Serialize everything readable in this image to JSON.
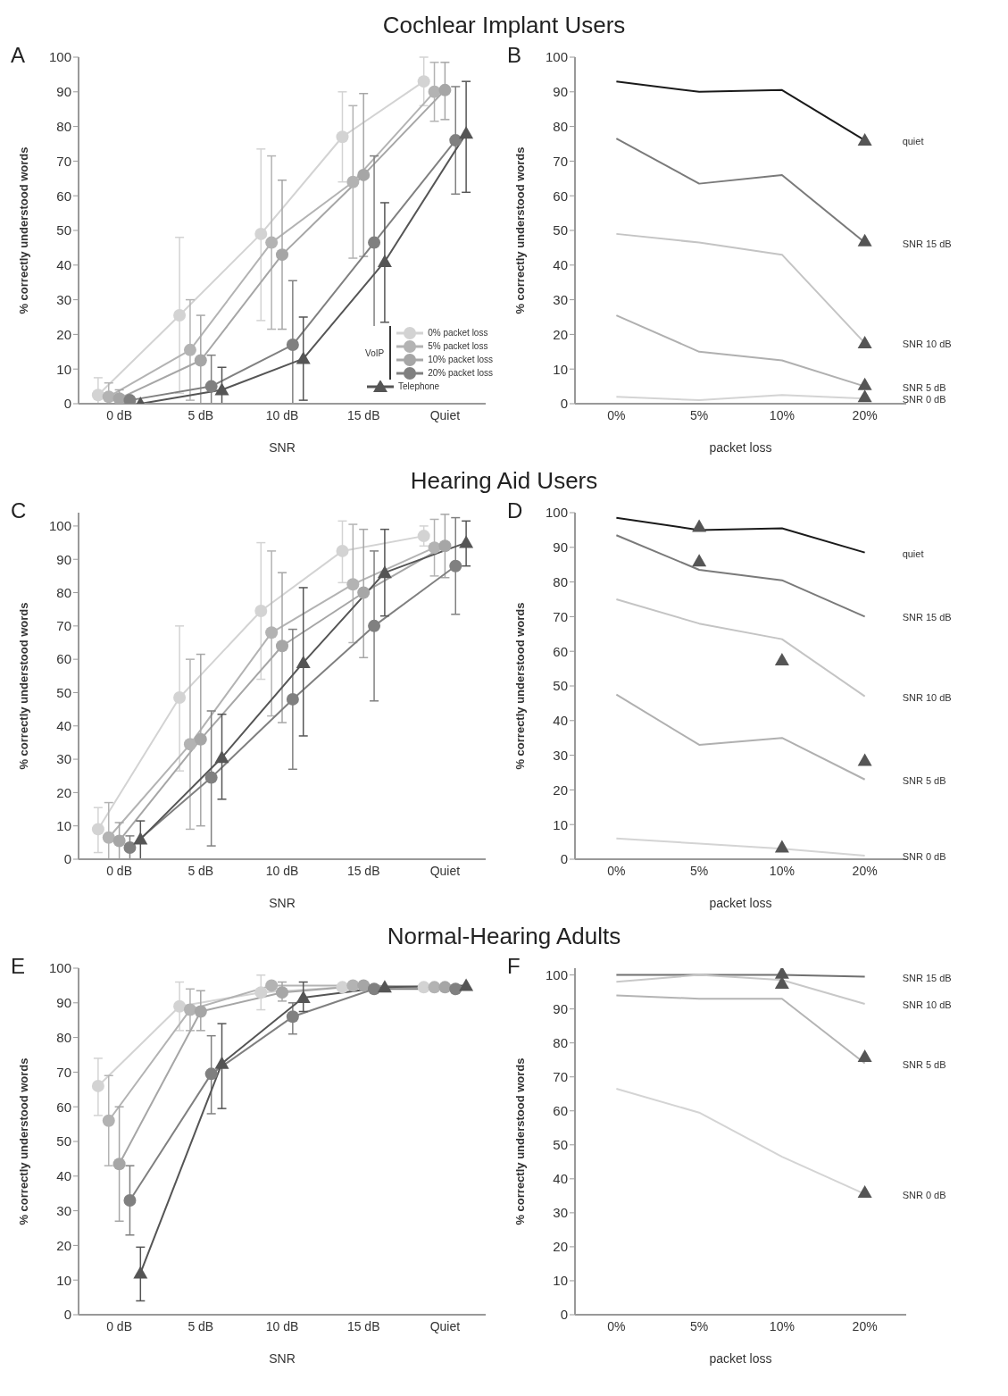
{
  "chart_data": [
    {
      "type": "line",
      "title": "Cochlear Implant Users",
      "annotations": [
        "A"
      ],
      "categories": [
        "0 dB",
        "5 dB",
        "10 dB",
        "15 dB",
        "Quiet"
      ],
      "xlabel": "SNR",
      "ylabel": "% correctly understood words",
      "ylim": [
        0,
        100
      ],
      "yticks": [
        0,
        10,
        20,
        30,
        40,
        50,
        60,
        70,
        80,
        90,
        100
      ],
      "legend": "bottom right",
      "legend_title": "VoIP",
      "series": [
        {
          "name": "0% packet loss",
          "color": "#d3d3d3",
          "marker": "circle",
          "values": [
            2.5,
            25.5,
            49,
            77,
            93
          ],
          "errors": [
            [
              0,
              7.5
            ],
            [
              3,
              48
            ],
            [
              24,
              73.5
            ],
            [
              64,
              90
            ],
            [
              86,
              100
            ]
          ]
        },
        {
          "name": "5% packet loss",
          "color": "#b3b3b3",
          "marker": "circle",
          "values": [
            2,
            15.5,
            46.5,
            64,
            90
          ],
          "errors": [
            [
              0,
              6
            ],
            [
              1,
              30
            ],
            [
              21.5,
              71.5
            ],
            [
              42,
              86
            ],
            [
              81.5,
              98.5
            ]
          ]
        },
        {
          "name": "10% packet loss",
          "color": "#a6a6a6",
          "marker": "circle",
          "values": [
            1.5,
            12.5,
            43,
            66,
            90.5
          ],
          "errors": [
            [
              0,
              4
            ],
            [
              0,
              25.5
            ],
            [
              21.5,
              64.5
            ],
            [
              42.5,
              89.5
            ],
            [
              82,
              98.5
            ]
          ]
        },
        {
          "name": "20% packet loss",
          "color": "#808080",
          "marker": "circle",
          "values": [
            1,
            5,
            17,
            46.5,
            76
          ],
          "errors": [
            null,
            [
              0,
              14
            ],
            [
              0,
              35.5
            ],
            25,
            [
              60.5,
              91.5
            ]
          ]
        },
        {
          "name": "Telephone",
          "color": "#555555",
          "marker": "triangle",
          "values": [
            0,
            4,
            13,
            41,
            78
          ],
          "errors": [
            null,
            [
              0,
              10.5
            ],
            [
              1,
              25
            ],
            [
              23.5,
              58
            ],
            [
              61,
              93
            ]
          ]
        }
      ]
    },
    {
      "type": "line",
      "annotations": [
        "B"
      ],
      "categories": [
        "0%",
        "5%",
        "10%",
        "20%"
      ],
      "xlabel": "packet loss",
      "ylabel": "% correctly understood words",
      "ylim": [
        0,
        100
      ],
      "yticks": [
        0,
        10,
        20,
        30,
        40,
        50,
        60,
        70,
        80,
        90,
        100
      ],
      "series": [
        {
          "name": "quiet",
          "color": "#1a1a1a",
          "values": [
            93,
            90,
            90.5,
            76
          ]
        },
        {
          "name": "SNR 15 dB",
          "color": "#7a7a7a",
          "values": [
            76.5,
            63.5,
            66,
            46.5
          ]
        },
        {
          "name": "SNR 10 dB",
          "color": "#c4c4c4",
          "values": [
            49,
            46.5,
            43,
            17.5
          ]
        },
        {
          "name": "SNR 5 dB",
          "color": "#b0b0b0",
          "values": [
            25.5,
            15,
            12.5,
            5
          ]
        },
        {
          "name": "SNR 0 dB",
          "color": "#d4d4d4",
          "values": [
            2,
            1,
            2.5,
            1.5
          ]
        },
        {
          "type": "scatter",
          "color": "#555555",
          "marker": "triangle",
          "x": [
            "20%",
            "20%",
            "20%",
            "20%",
            "20%"
          ],
          "values": [
            76,
            47,
            17.5,
            5.5,
            2
          ]
        }
      ]
    },
    {
      "type": "line",
      "title": "Hearing Aid Users",
      "annotations": [
        "C"
      ],
      "categories": [
        "0 dB",
        "5 dB",
        "10 dB",
        "15 dB",
        "Quiet"
      ],
      "xlabel": "SNR",
      "ylabel": "% correctly understood words",
      "ylim": [
        0,
        104
      ],
      "yticks": [
        0,
        10,
        20,
        30,
        40,
        50,
        60,
        70,
        80,
        90,
        100
      ],
      "series": [
        {
          "color": "#d3d3d3",
          "marker": "circle",
          "values": [
            9,
            48.5,
            74.5,
            92.5,
            97
          ],
          "errors": [
            [
              2,
              15.5
            ],
            [
              26.5,
              70
            ],
            [
              54,
              95
            ],
            [
              83,
              101.5
            ],
            [
              94,
              100
            ]
          ]
        },
        {
          "color": "#b3b3b3",
          "marker": "circle",
          "values": [
            6.5,
            34.5,
            68,
            82.5,
            93.5
          ],
          "errors": [
            [
              0,
              17
            ],
            [
              9,
              60
            ],
            [
              43,
              92.5
            ],
            [
              65,
              100.5
            ],
            [
              85,
              102
            ]
          ]
        },
        {
          "color": "#a6a6a6",
          "marker": "circle",
          "values": [
            5.5,
            36,
            64,
            80,
            94
          ],
          "errors": [
            [
              0,
              11
            ],
            [
              10,
              61.5
            ],
            [
              41,
              86
            ],
            [
              60.5,
              99
            ],
            [
              84.5,
              103.5
            ]
          ]
        },
        {
          "color": "#808080",
          "marker": "circle",
          "values": [
            3.5,
            24.5,
            48,
            70,
            88
          ],
          "errors": [
            [
              0,
              7
            ],
            [
              4,
              44.5
            ],
            [
              27,
              69
            ],
            [
              47.5,
              92.5
            ],
            [
              73.5,
              102.5
            ]
          ]
        },
        {
          "color": "#555555",
          "marker": "triangle",
          "values": [
            6,
            30.5,
            59,
            86,
            95
          ],
          "errors": [
            [
              0,
              11.5
            ],
            [
              18,
              43.5
            ],
            [
              37,
              81.5
            ],
            [
              73,
              99
            ],
            [
              88,
              101.5
            ]
          ]
        }
      ]
    },
    {
      "type": "line",
      "annotations": [
        "D"
      ],
      "categories": [
        "0%",
        "5%",
        "10%",
        "20%"
      ],
      "xlabel": "packet loss",
      "ylabel": "% correctly understood words",
      "ylim": [
        0,
        100
      ],
      "yticks": [
        0,
        10,
        20,
        30,
        40,
        50,
        60,
        70,
        80,
        90,
        100
      ],
      "series": [
        {
          "name": "quiet",
          "color": "#1a1a1a",
          "values": [
            98.5,
            95,
            95.5,
            88.5
          ]
        },
        {
          "name": "SNR 15 dB",
          "color": "#7a7a7a",
          "values": [
            93.5,
            83.5,
            80.5,
            70
          ]
        },
        {
          "name": "SNR 10 dB",
          "color": "#c4c4c4",
          "values": [
            75,
            68,
            63.5,
            47
          ]
        },
        {
          "name": "SNR 5 dB",
          "color": "#b0b0b0",
          "values": [
            47.5,
            33,
            35,
            23
          ]
        },
        {
          "name": "SNR 0 dB",
          "color": "#d4d4d4",
          "values": [
            6,
            4.5,
            3,
            1
          ]
        },
        {
          "type": "scatter",
          "color": "#555555",
          "marker": "triangle",
          "x": [
            "5%",
            "5%",
            "10%",
            "20%",
            "10%"
          ],
          "values": [
            96,
            86,
            57.5,
            28.5,
            3.5
          ]
        }
      ]
    },
    {
      "type": "line",
      "title": "Normal-Hearing Adults",
      "annotations": [
        "E"
      ],
      "categories": [
        "0 dB",
        "5 dB",
        "10 dB",
        "15 dB",
        "Quiet"
      ],
      "xlabel": "SNR",
      "ylabel": "% correctly understood words",
      "ylim": [
        0,
        100
      ],
      "yticks": [
        0,
        10,
        20,
        30,
        40,
        50,
        60,
        70,
        80,
        90,
        100
      ],
      "series": [
        {
          "color": "#d3d3d3",
          "marker": "circle",
          "values": [
            66,
            89,
            93,
            94.5,
            94.5
          ],
          "errors": [
            [
              57.5,
              74
            ],
            [
              82,
              96
            ],
            [
              88,
              98
            ],
            null,
            null
          ]
        },
        {
          "color": "#b3b3b3",
          "marker": "circle",
          "values": [
            56,
            88,
            95,
            95,
            94.5
          ],
          "errors": [
            [
              43,
              69
            ],
            [
              82,
              94
            ],
            null,
            null,
            null
          ]
        },
        {
          "color": "#a6a6a6",
          "marker": "circle",
          "values": [
            43.5,
            87.5,
            93,
            95,
            94.5
          ],
          "errors": [
            [
              27,
              60
            ],
            [
              82,
              93.5
            ],
            [
              90.5,
              96
            ],
            null,
            null
          ]
        },
        {
          "color": "#808080",
          "marker": "circle",
          "values": [
            33,
            69.5,
            86,
            94,
            94
          ],
          "errors": [
            [
              23,
              43
            ],
            [
              58,
              80.5
            ],
            [
              81,
              90
            ],
            null,
            null
          ]
        },
        {
          "color": "#555555",
          "marker": "triangle",
          "values": [
            12,
            72.5,
            91.5,
            94.5,
            95
          ],
          "errors": [
            [
              4,
              19.5
            ],
            [
              59.5,
              84
            ],
            [
              87.5,
              96
            ],
            null,
            null
          ]
        }
      ]
    },
    {
      "type": "line",
      "annotations": [
        "F"
      ],
      "categories": [
        "0%",
        "5%",
        "10%",
        "20%"
      ],
      "xlabel": "packet loss",
      "ylabel": "% correctly understood words",
      "ylim": [
        0,
        102
      ],
      "yticks": [
        0,
        10,
        20,
        30,
        40,
        50,
        60,
        70,
        80,
        90,
        100
      ],
      "series": [
        {
          "name": "SNR 15 dB",
          "color": "#707070",
          "values": [
            100,
            100,
            100,
            99.5
          ]
        },
        {
          "name": "SNR 10 dB",
          "color": "#c8c8c8",
          "values": [
            98,
            100,
            98.5,
            91.5
          ]
        },
        {
          "name": "SNR 5 dB",
          "color": "#b4b4b4",
          "values": [
            94,
            93,
            93,
            74
          ]
        },
        {
          "name": "SNR 0 dB",
          "color": "#d4d4d4",
          "values": [
            66.5,
            59.5,
            46.5,
            35.5
          ]
        },
        {
          "type": "scatter",
          "color": "#555555",
          "marker": "triangle",
          "x": [
            "10%",
            "10%",
            "20%",
            "20%"
          ],
          "values": [
            100.5,
            97.5,
            76,
            36
          ]
        }
      ]
    }
  ]
}
